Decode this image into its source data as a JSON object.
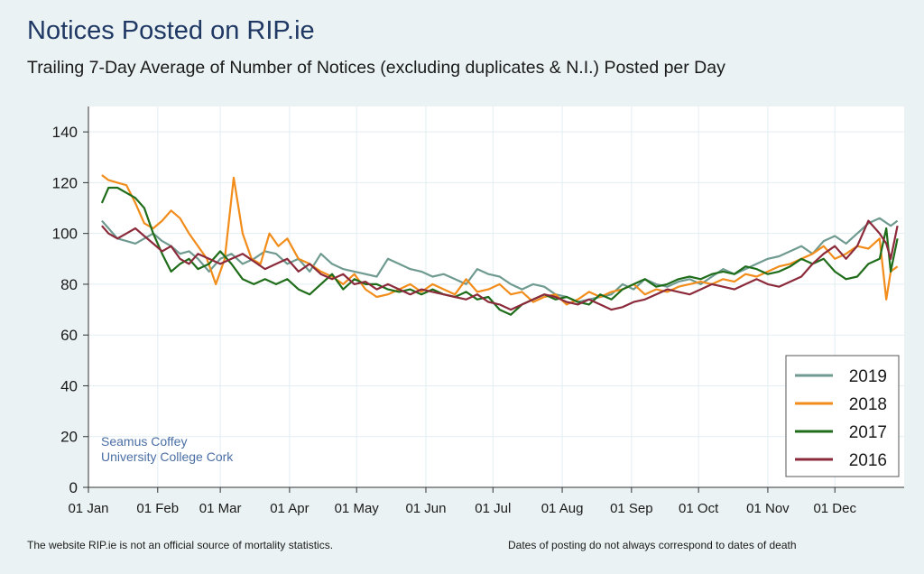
{
  "chart_data": {
    "type": "line",
    "title": "Notices Posted on RIP.ie",
    "subtitle": "Trailing 7-Day Average of Number of Notices (excluding duplicates & N.I.) Posted per Day",
    "ylim": [
      0,
      150
    ],
    "yticks": [
      0,
      20,
      40,
      60,
      80,
      100,
      120,
      140
    ],
    "xlim": [
      1,
      366
    ],
    "xticks": [
      {
        "day": 1,
        "label": "01 Jan"
      },
      {
        "day": 32,
        "label": "01 Feb"
      },
      {
        "day": 60,
        "label": "01 Mar"
      },
      {
        "day": 91,
        "label": "01 Apr"
      },
      {
        "day": 121,
        "label": "01 May"
      },
      {
        "day": 152,
        "label": "01 Jun"
      },
      {
        "day": 182,
        "label": "01 Jul"
      },
      {
        "day": 213,
        "label": "01 Aug"
      },
      {
        "day": 244,
        "label": "01 Sep"
      },
      {
        "day": 274,
        "label": "01 Oct"
      },
      {
        "day": 305,
        "label": "01 Nov"
      },
      {
        "day": 335,
        "label": "01 Dec"
      }
    ],
    "grid": true,
    "legend_position": "bottom-right",
    "annotation": [
      "Seamus Coffey",
      "University College Cork"
    ],
    "series": [
      {
        "name": "2019",
        "color": "#6f9a90",
        "x": [
          7,
          10,
          14,
          18,
          22,
          26,
          30,
          34,
          38,
          42,
          46,
          50,
          55,
          60,
          65,
          70,
          75,
          80,
          85,
          90,
          95,
          100,
          105,
          110,
          115,
          120,
          125,
          130,
          135,
          140,
          145,
          150,
          155,
          160,
          165,
          170,
          175,
          180,
          185,
          190,
          195,
          200,
          205,
          210,
          215,
          220,
          225,
          230,
          235,
          240,
          245,
          250,
          255,
          260,
          265,
          270,
          275,
          280,
          285,
          290,
          295,
          300,
          305,
          310,
          315,
          320,
          325,
          330,
          335,
          340,
          345,
          350,
          355,
          360,
          363
        ],
        "y": [
          105,
          102,
          98,
          97,
          96,
          98,
          100,
          97,
          95,
          92,
          93,
          90,
          85,
          90,
          92,
          88,
          90,
          93,
          92,
          88,
          90,
          85,
          92,
          88,
          86,
          85,
          84,
          83,
          90,
          88,
          86,
          85,
          83,
          84,
          82,
          80,
          86,
          84,
          83,
          80,
          78,
          80,
          79,
          76,
          75,
          73,
          74,
          75,
          76,
          80,
          78,
          82,
          80,
          79,
          81,
          82,
          80,
          83,
          86,
          84,
          86,
          88,
          90,
          91,
          93,
          95,
          92,
          97,
          99,
          96,
          100,
          104,
          106,
          103,
          105
        ]
      },
      {
        "name": "2018",
        "color": "#f28c1a",
        "x": [
          7,
          10,
          14,
          18,
          22,
          26,
          30,
          34,
          38,
          42,
          46,
          50,
          54,
          58,
          62,
          66,
          70,
          74,
          78,
          82,
          86,
          90,
          95,
          100,
          105,
          110,
          115,
          120,
          125,
          130,
          135,
          140,
          145,
          150,
          155,
          160,
          165,
          170,
          175,
          180,
          185,
          190,
          195,
          200,
          205,
          210,
          215,
          220,
          225,
          230,
          235,
          240,
          245,
          250,
          255,
          260,
          265,
          270,
          275,
          280,
          285,
          290,
          295,
          300,
          305,
          310,
          315,
          320,
          325,
          330,
          335,
          340,
          345,
          350,
          355,
          358,
          360,
          363
        ],
        "y": [
          123,
          121,
          120,
          119,
          112,
          104,
          102,
          105,
          109,
          106,
          100,
          95,
          90,
          80,
          90,
          122,
          100,
          90,
          88,
          100,
          95,
          98,
          90,
          88,
          85,
          83,
          80,
          84,
          78,
          75,
          76,
          78,
          80,
          77,
          80,
          78,
          76,
          82,
          77,
          78,
          80,
          76,
          77,
          73,
          75,
          76,
          72,
          74,
          77,
          75,
          77,
          78,
          80,
          76,
          78,
          77,
          79,
          80,
          81,
          80,
          82,
          81,
          84,
          83,
          85,
          87,
          88,
          90,
          92,
          95,
          90,
          92,
          95,
          94,
          98,
          74,
          85,
          87
        ]
      },
      {
        "name": "2017",
        "color": "#1f6d1a",
        "x": [
          7,
          10,
          14,
          18,
          22,
          26,
          30,
          34,
          38,
          42,
          46,
          50,
          55,
          60,
          65,
          70,
          75,
          80,
          85,
          90,
          95,
          100,
          105,
          110,
          115,
          120,
          125,
          130,
          135,
          140,
          145,
          150,
          155,
          160,
          165,
          170,
          175,
          180,
          185,
          190,
          195,
          200,
          205,
          210,
          215,
          220,
          225,
          230,
          235,
          240,
          245,
          250,
          255,
          260,
          265,
          270,
          275,
          280,
          285,
          290,
          295,
          300,
          305,
          310,
          315,
          320,
          325,
          330,
          335,
          340,
          345,
          350,
          355,
          358,
          360,
          363
        ],
        "y": [
          112,
          118,
          118,
          116,
          114,
          110,
          100,
          92,
          85,
          88,
          90,
          86,
          88,
          93,
          88,
          82,
          80,
          82,
          80,
          82,
          78,
          76,
          80,
          84,
          78,
          82,
          80,
          80,
          78,
          77,
          78,
          76,
          78,
          76,
          75,
          77,
          74,
          75,
          70,
          68,
          72,
          74,
          76,
          74,
          75,
          73,
          72,
          76,
          74,
          78,
          80,
          82,
          79,
          80,
          82,
          83,
          82,
          84,
          85,
          84,
          87,
          86,
          84,
          85,
          87,
          90,
          88,
          90,
          85,
          82,
          83,
          88,
          90,
          102,
          85,
          98
        ]
      },
      {
        "name": "2016",
        "color": "#8b2a3a",
        "x": [
          7,
          10,
          14,
          18,
          22,
          26,
          30,
          34,
          38,
          42,
          46,
          50,
          55,
          60,
          65,
          70,
          75,
          80,
          85,
          90,
          95,
          100,
          105,
          110,
          115,
          120,
          125,
          130,
          135,
          140,
          145,
          150,
          155,
          160,
          165,
          170,
          175,
          180,
          185,
          190,
          195,
          200,
          205,
          210,
          215,
          220,
          225,
          230,
          235,
          240,
          245,
          250,
          255,
          260,
          265,
          270,
          275,
          280,
          285,
          290,
          295,
          300,
          305,
          310,
          315,
          320,
          325,
          330,
          335,
          340,
          345,
          350,
          355,
          358,
          360,
          363
        ],
        "y": [
          103,
          100,
          98,
          100,
          102,
          99,
          96,
          93,
          95,
          90,
          88,
          92,
          90,
          88,
          90,
          92,
          89,
          86,
          88,
          90,
          85,
          88,
          84,
          82,
          84,
          80,
          81,
          78,
          80,
          78,
          76,
          78,
          77,
          76,
          75,
          74,
          76,
          73,
          72,
          70,
          72,
          74,
          76,
          75,
          73,
          72,
          74,
          72,
          70,
          71,
          73,
          74,
          76,
          78,
          77,
          76,
          78,
          80,
          79,
          78,
          80,
          82,
          80,
          79,
          81,
          83,
          88,
          92,
          95,
          90,
          95,
          105,
          100,
          96,
          90,
          103
        ]
      }
    ]
  }
}
